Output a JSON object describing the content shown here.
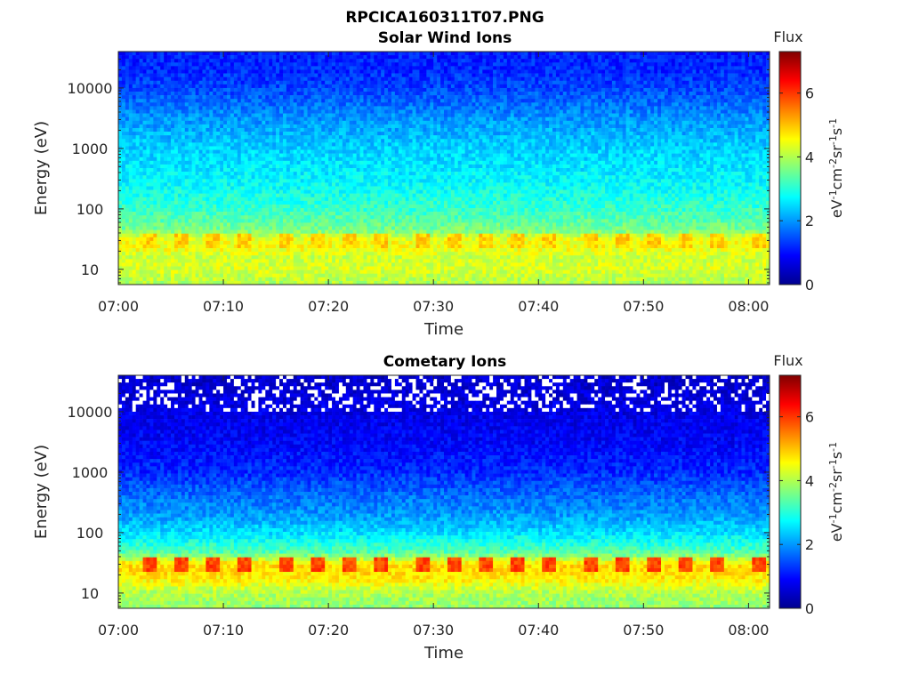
{
  "figure_title": "RPCICA160311T07.PNG",
  "chart_data": [
    {
      "type": "heatmap",
      "title": "Solar Wind Ions",
      "xlabel": "Time",
      "ylabel": "Energy (eV)",
      "x_ticks": [
        "07:00",
        "07:10",
        "07:20",
        "07:30",
        "07:40",
        "07:50",
        "08:00"
      ],
      "x_range": [
        "07:00",
        "08:02"
      ],
      "y_scale": "log",
      "y_ticks": [
        10,
        100,
        1000,
        10000
      ],
      "y_tick_labels": [
        "10",
        "100",
        "1000",
        "10000"
      ],
      "y_range": [
        5.6,
        40000
      ],
      "colormap": "jet",
      "colorbar": {
        "label_title": "Flux",
        "label": "eV-1cm-2sr-1s-1",
        "range": [
          0,
          7.3
        ],
        "ticks": [
          0,
          2,
          4,
          6
        ],
        "tick_labels": [
          "0",
          "2",
          "4",
          "6"
        ]
      },
      "energy_profile": {
        "energy_eV": [
          6,
          10,
          16,
          22,
          30,
          45,
          100,
          300,
          1000,
          3000,
          10000,
          20000,
          40000
        ],
        "mean_flux": [
          4.0,
          4.3,
          4.2,
          4.5,
          4.5,
          3.6,
          3.1,
          2.7,
          2.4,
          2.0,
          1.4,
          1.2,
          1.1
        ]
      },
      "pulse_times": [
        "07:03",
        "07:06",
        "07:09",
        "07:12",
        "07:16",
        "07:19",
        "07:22",
        "07:25",
        "07:29",
        "07:32",
        "07:35",
        "07:38",
        "07:41",
        "07:45",
        "07:48",
        "07:51",
        "07:54",
        "07:57",
        "08:01"
      ],
      "pulse_energy_range_eV": [
        22,
        38
      ],
      "pulse_peak_flux": 5.2
    },
    {
      "type": "heatmap",
      "title": "Cometary Ions",
      "xlabel": "Time",
      "ylabel": "Energy (eV)",
      "x_ticks": [
        "07:00",
        "07:10",
        "07:20",
        "07:30",
        "07:40",
        "07:50",
        "08:00"
      ],
      "x_range": [
        "07:00",
        "08:02"
      ],
      "y_scale": "log",
      "y_ticks": [
        10,
        100,
        1000,
        10000
      ],
      "y_tick_labels": [
        "10",
        "100",
        "1000",
        "10000"
      ],
      "y_range": [
        5.6,
        40000
      ],
      "colormap": "jet",
      "colorbar": {
        "label_title": "Flux",
        "label": "eV-1cm-2sr-1s-1",
        "range": [
          0,
          7.3
        ],
        "ticks": [
          0,
          2,
          4,
          6
        ],
        "tick_labels": [
          "0",
          "2",
          "4",
          "6"
        ]
      },
      "energy_profile": {
        "energy_eV": [
          6,
          10,
          16,
          22,
          30,
          45,
          100,
          200,
          500,
          1000,
          3000,
          10000,
          20000,
          40000
        ],
        "mean_flux": [
          3.8,
          4.0,
          4.6,
          4.8,
          4.8,
          3.4,
          2.5,
          2.0,
          1.6,
          1.2,
          0.9,
          0.7,
          0.6,
          0.5
        ]
      },
      "pulse_times": [
        "07:03",
        "07:06",
        "07:09",
        "07:12",
        "07:16",
        "07:19",
        "07:22",
        "07:25",
        "07:29",
        "07:32",
        "07:35",
        "07:38",
        "07:41",
        "07:45",
        "07:48",
        "07:51",
        "07:54",
        "07:57",
        "08:01"
      ],
      "pulse_energy_range_eV": [
        22,
        38
      ],
      "pulse_peak_flux": 6.2,
      "no_data_fraction_above_10000_eV": 0.25
    }
  ]
}
